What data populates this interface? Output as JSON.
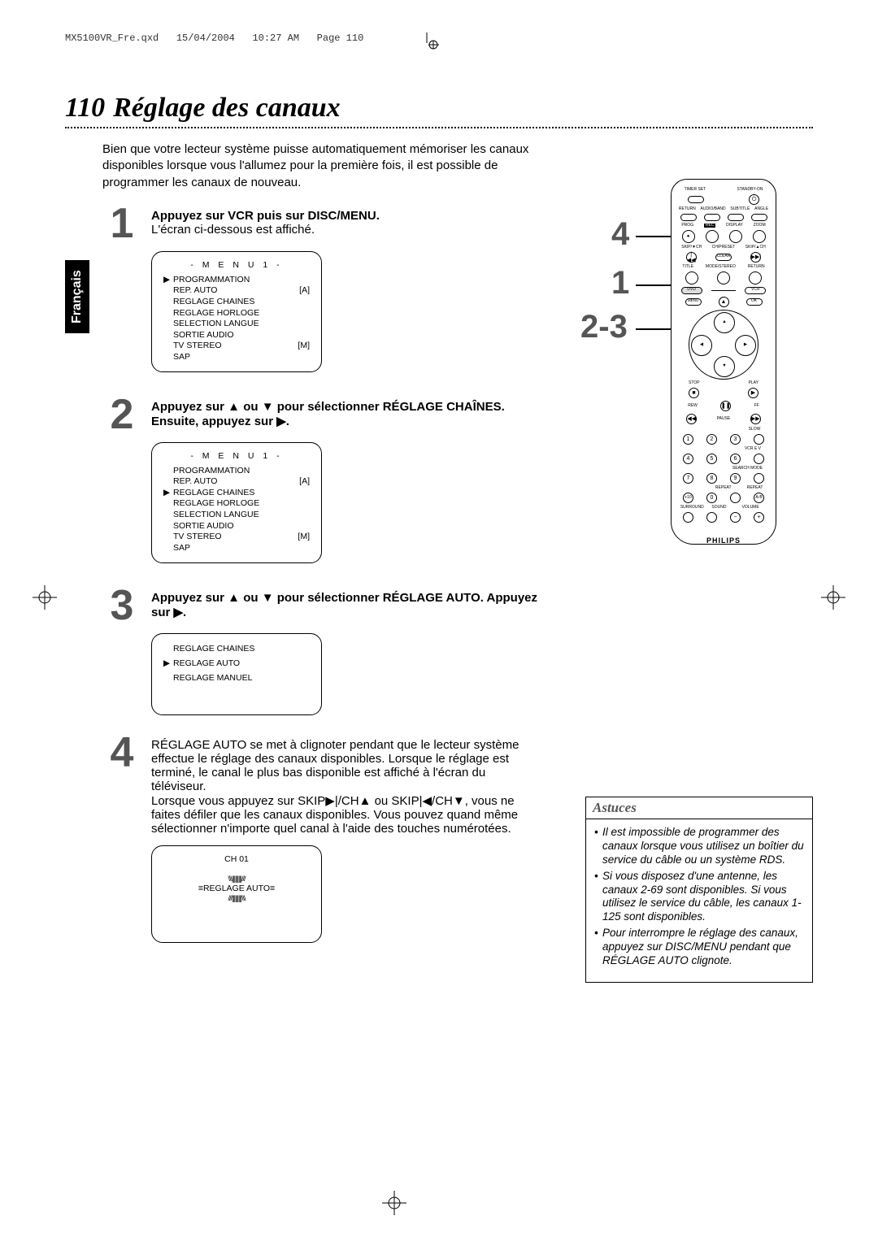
{
  "header": {
    "filename": "MX5100VR_Fre.qxd",
    "date": "15/04/2004",
    "time": "10:27 AM",
    "page_label": "Page 110"
  },
  "title": {
    "page_number": "110",
    "text": "Réglage des canaux"
  },
  "language_tab": "Français",
  "intro": "Bien que votre lecteur système puisse automatiquement mémoriser les canaux disponibles lorsque vous l'allumez pour la première fois, il est possible de programmer les canaux de nouveau.",
  "steps": {
    "s1": {
      "num": "1",
      "bold": "Appuyez sur VCR puis sur DISC/MENU.",
      "text": "L'écran ci-dessous est affiché."
    },
    "s2": {
      "num": "2",
      "bold": "Appuyez sur ▲ ou ▼ pour sélectionner RÉGLAGE CHAÎNES. Ensuite, appuyez sur ▶."
    },
    "s3": {
      "num": "3",
      "bold": "Appuyez sur ▲ ou ▼ pour sélectionner RÉGLAGE AUTO. Appuyez sur ▶."
    },
    "s4": {
      "num": "4",
      "text": "RÉGLAGE AUTO se met à clignoter pendant que le lecteur système effectue le réglage des canaux disponibles. Lorsque le réglage est terminé, le canal le plus bas disponible est affiché à l'écran du téléviseur.\nLorsque vous appuyez sur SKIP▶|/CH▲ ou SKIP|◀/CH▼, vous ne faites défiler que les canaux disponibles. Vous pouvez quand même sélectionner n'importe quel canal à l'aide des touches numérotées."
    }
  },
  "menu1": {
    "title": "- M E N U  1 -",
    "items": [
      {
        "arrow": "▶",
        "label": "PROGRAMMATION",
        "right": ""
      },
      {
        "arrow": "",
        "label": "REP. AUTO",
        "right": "[A]"
      },
      {
        "arrow": "",
        "label": "REGLAGE CHAINES",
        "right": ""
      },
      {
        "arrow": "",
        "label": "REGLAGE HORLOGE",
        "right": ""
      },
      {
        "arrow": "",
        "label": "SELECTION LANGUE",
        "right": ""
      },
      {
        "arrow": "",
        "label": "SORTIE AUDIO",
        "right": ""
      },
      {
        "arrow": "",
        "label": "TV STEREO",
        "right": "[M]"
      },
      {
        "arrow": "",
        "label": "SAP",
        "right": ""
      }
    ]
  },
  "menu2": {
    "title": "- M E N U  1 -",
    "items": [
      {
        "arrow": "",
        "label": "PROGRAMMATION",
        "right": ""
      },
      {
        "arrow": "",
        "label": "REP. AUTO",
        "right": "[A]"
      },
      {
        "arrow": "▶",
        "label": "REGLAGE CHAINES",
        "right": ""
      },
      {
        "arrow": "",
        "label": "REGLAGE HORLOGE",
        "right": ""
      },
      {
        "arrow": "",
        "label": "SELECTION LANGUE",
        "right": ""
      },
      {
        "arrow": "",
        "label": "SORTIE AUDIO",
        "right": ""
      },
      {
        "arrow": "",
        "label": "TV STEREO",
        "right": "[M]"
      },
      {
        "arrow": "",
        "label": "SAP",
        "right": ""
      }
    ]
  },
  "menu3": {
    "items": [
      {
        "arrow": "",
        "label": "REGLAGE CHAINES"
      },
      {
        "arrow": "▶",
        "label": "REGLAGE AUTO"
      },
      {
        "arrow": "",
        "label": "REGLAGE MANUEL"
      }
    ]
  },
  "menu4": {
    "ch": "CH 01",
    "label": "REGLAGE AUTO"
  },
  "remote": {
    "brand": "PHILIPS",
    "labels": {
      "timer": "TIMER SET",
      "standby": "STANDBY-ON",
      "return": "RETURN",
      "audio": "AUDIO/BAND",
      "subtitle": "SUBTITLE",
      "angle": "ANGLE",
      "prog": "PROG",
      "rec": "REC",
      "display": "DISPLAY",
      "zoom": "ZOOM",
      "skipl": "SKIP/▼CH",
      "chp": "CH/PRESET",
      "clear": "CLEAR",
      "skipr": "SKIP/▲CH",
      "title": "TITLE",
      "mode": "MODE/STEREO",
      "retmenu": "RETURN",
      "dvd": "DVD",
      "vcr": "VCR",
      "menu": "MENU",
      "disc": "DISC",
      "ok": "OK",
      "stop": "STOP",
      "play": "PLAY",
      "rew": "REW",
      "pause": "PAUSE",
      "ff": "FF",
      "slow": "SLOW",
      "voxy": "VCR E V",
      "search": "SEARCH MODE",
      "repeat2": "REPEAT",
      "repeat_ab": "REPEAT",
      "surround": "SURROUND",
      "sound": "SOUND",
      "volume": "VOLUME"
    },
    "callouts": {
      "c1": "1",
      "c23": "2-3",
      "c4": "4"
    }
  },
  "tips": {
    "title": "Astuces",
    "items": [
      "Il est impossible de programmer des canaux lorsque vous utilisez un boîtier du service du câble ou un système RDS.",
      "Si vous disposez d'une antenne, les canaux 2-69 sont disponibles. Si vous utilisez le service du câble, les canaux 1-125 sont disponibles.",
      "Pour interrompre le réglage des canaux, appuyez sur DISC/MENU pendant que RÉGLAGE AUTO clignote."
    ]
  }
}
